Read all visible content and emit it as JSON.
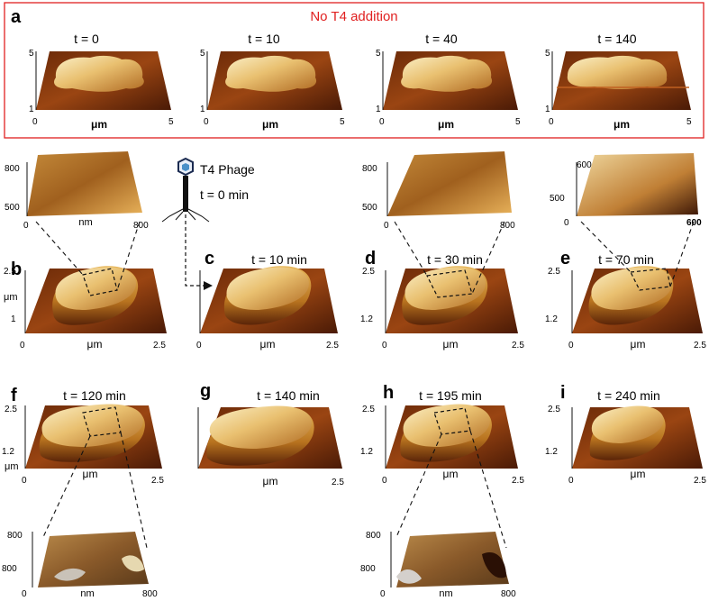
{
  "panel_a": {
    "letter": "a",
    "caption": "No T4 addition",
    "frame_color": "#e02020",
    "times": [
      "t = 0",
      "t = 10",
      "t = 40",
      "t = 140"
    ],
    "z_top": "5",
    "z_bottom": "1",
    "x_start": "0",
    "x_end": "5",
    "x_unit": "μm"
  },
  "phage": {
    "name": "T4 Phage",
    "time": "t = 0 min"
  },
  "panels": [
    {
      "letter": "b",
      "time": ""
    },
    {
      "letter": "c",
      "time": "t = 10 min"
    },
    {
      "letter": "d",
      "time": "t = 30 min"
    },
    {
      "letter": "e",
      "time": "t = 70 min"
    },
    {
      "letter": "f",
      "time": "t = 120 min"
    },
    {
      "letter": "g",
      "time": "t = 140 min"
    },
    {
      "letter": "h",
      "time": "t = 195 min"
    },
    {
      "letter": "i",
      "time": "t = 240 min"
    }
  ],
  "cell_axes": {
    "z_top": "2.5",
    "z_mid": "1.2",
    "z_mid_b": "1",
    "z_unit": "μm",
    "x_start": "0",
    "x_end": "2.5",
    "x_unit": "μm"
  },
  "zooms": {
    "b": {
      "z_top": "800",
      "z_bottom": "500",
      "x_start": "0",
      "x_end": "800",
      "x_unit": "nm"
    },
    "d": {
      "z_top": "800",
      "z_bottom": "500",
      "x_start": "0",
      "x_end": "800"
    },
    "e": {
      "z_top": "600",
      "z_bottom": "500",
      "x_start": "0",
      "x_end": "600"
    },
    "f": {
      "z_top": "800",
      "z_bottom": "800",
      "x_start": "0",
      "x_end": "800",
      "x_unit": "nm"
    },
    "h": {
      "z_top": "800",
      "z_bottom": "800",
      "x_start": "0",
      "x_end": "800",
      "x_unit": "nm"
    }
  },
  "colors": {
    "floor_dark": "#4a1a06",
    "floor_mid": "#8a3a10",
    "cell_light": "#f6e3a8",
    "cell_mid": "#d9a24a",
    "cell_dark": "#7a3a10",
    "arrow": "#111111"
  }
}
